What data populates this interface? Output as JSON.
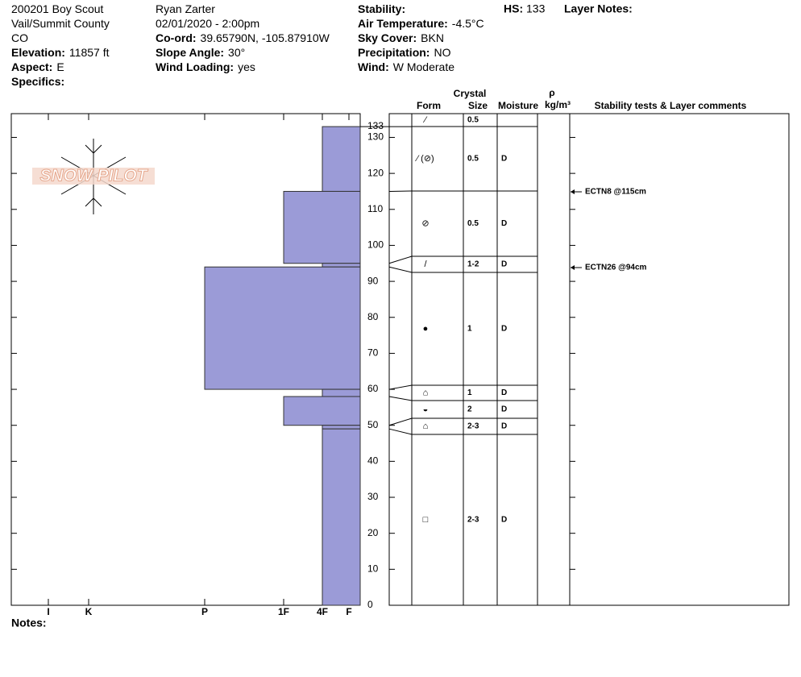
{
  "header": {
    "col1": [
      {
        "text": "200201 Boy Scout"
      },
      {
        "text": "Vail/Summit County"
      },
      {
        "text": "CO"
      },
      {
        "label": "Elevation:",
        "value": "11857 ft"
      },
      {
        "label": "Aspect:",
        "value": "E"
      },
      {
        "label": "Specifics:"
      }
    ],
    "col2": [
      {
        "text": "Ryan Zarter"
      },
      {
        "text": "02/01/2020 - 2:00pm"
      },
      {
        "label": "Co-ord:",
        "value": "39.65790N, -105.87910W"
      },
      {
        "label": "Slope Angle:",
        "value": "30°"
      },
      {
        "label": "Wind Loading:",
        "value": "yes"
      }
    ],
    "col3": [
      {
        "label": "Stability:"
      },
      {
        "label": "Air Temperature:",
        "value": "-4.5°C"
      },
      {
        "label": "Sky Cover:",
        "value": "BKN"
      },
      {
        "label": "Precipitation:",
        "value": "NO"
      },
      {
        "label": "Wind:",
        "value": "W Moderate"
      }
    ],
    "hs_label": "HS:",
    "hs": 133,
    "layer_notes": "Layer Notes:"
  },
  "logo": "SNOW PILOT",
  "chart_data": {
    "type": "hardness-profile",
    "ylim": [
      0,
      136.6
    ],
    "yticks": [
      0,
      10,
      20,
      30,
      40,
      50,
      60,
      70,
      80,
      90,
      100,
      110,
      120,
      130
    ],
    "xlim": [
      0,
      7
    ],
    "xticks": [
      {
        "value": 1,
        "label": "F"
      },
      {
        "value": 2,
        "label": "4F"
      },
      {
        "value": 3,
        "label": "1F"
      },
      {
        "value": 4,
        "label": "P"
      },
      {
        "value": 5,
        "label": "K"
      },
      {
        "value": 6,
        "label": "I"
      }
    ],
    "color": "#9b9bd7",
    "layers": [
      {
        "top": 133,
        "bottom": 115,
        "hardness": 2
      },
      {
        "top": 115,
        "bottom": 95,
        "hardness": 3
      },
      {
        "top": 95,
        "bottom": 94,
        "hardness": 2
      },
      {
        "top": 94,
        "bottom": 60,
        "hardness": 4
      },
      {
        "top": 60,
        "bottom": 58,
        "hardness": 2
      },
      {
        "top": 58,
        "bottom": 50,
        "hardness": 3
      },
      {
        "top": 50,
        "bottom": 49,
        "hardness": 2
      },
      {
        "top": 49,
        "bottom": 0,
        "hardness": 2
      }
    ]
  },
  "table": {
    "crystal": "Crystal",
    "form": "Form",
    "size": "Size",
    "moisture": "Moisture",
    "rho": "ρ",
    "density_unit": "kg/m³",
    "comments": "Stability tests & Layer comments",
    "rows": [
      {
        "form": "⁄",
        "size": "0.5"
      },
      {
        "form": "⁄ (⊘)",
        "size": "0.5",
        "moisture": "D"
      },
      {
        "form": "⊘",
        "size": "0.5",
        "moisture": "D"
      },
      {
        "form": "/",
        "size": "1-2",
        "moisture": "D"
      },
      {
        "form": "●",
        "size": "1",
        "moisture": "D"
      },
      {
        "form": "⌂",
        "size": "1",
        "moisture": "D"
      },
      {
        "form": "◒",
        "size": "2",
        "moisture": "D"
      },
      {
        "form": "⌂",
        "size": "2-3",
        "moisture": "D"
      },
      {
        "form": "□",
        "size": "2-3",
        "moisture": "D"
      }
    ],
    "tests": [
      "ECTN8 @115cm",
      "ECTN26 @94cm"
    ]
  },
  "notes": "Notes:"
}
